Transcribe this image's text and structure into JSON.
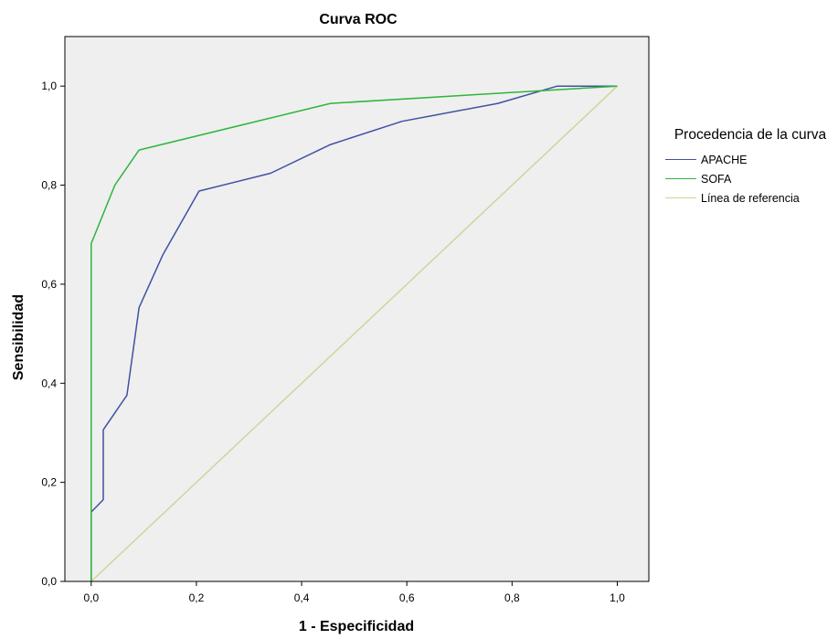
{
  "chart_data": {
    "type": "line",
    "title": "Curva ROC",
    "xlabel": "1 - Especificidad",
    "ylabel": "Sensibilidad",
    "xlim": [
      -0.05,
      1.06
    ],
    "ylim": [
      0.0,
      1.1
    ],
    "xticks": [
      "0,0",
      "0,2",
      "0,4",
      "0,6",
      "0,8",
      "1,0"
    ],
    "yticks": [
      "0,0",
      "0,2",
      "0,4",
      "0,6",
      "0,8",
      "1,0"
    ],
    "grid": false,
    "legend_placement": "right",
    "legend_title": "Procedencia de la curva",
    "series": [
      {
        "name": "APACHE",
        "color": "#3f51a3",
        "x": [
          0.0,
          0.0,
          0.023,
          0.023,
          0.068,
          0.091,
          0.136,
          0.205,
          0.341,
          0.455,
          0.591,
          0.773,
          0.886,
          1.0
        ],
        "y": [
          0.0,
          0.14,
          0.165,
          0.306,
          0.376,
          0.553,
          0.659,
          0.788,
          0.824,
          0.882,
          0.929,
          0.965,
          1.0,
          1.0
        ]
      },
      {
        "name": "SOFA",
        "color": "#2eb53a",
        "x": [
          0.0,
          0.0,
          0.045,
          0.091,
          0.455,
          1.0
        ],
        "y": [
          0.0,
          0.682,
          0.8,
          0.871,
          0.965,
          1.0
        ]
      },
      {
        "name": "Línea de referencia",
        "color": "#d2d39c",
        "x": [
          0.0,
          1.0
        ],
        "y": [
          0.0,
          1.0
        ]
      }
    ]
  },
  "legend": {
    "title": "Procedencia de la curva",
    "items": [
      {
        "label": "APACHE",
        "color": "#3f51a3"
      },
      {
        "label": "SOFA",
        "color": "#2eb53a"
      },
      {
        "label": "Línea de referencia",
        "color": "#d2d39c"
      }
    ]
  },
  "colors": {
    "plot_background": "#efefef",
    "axis": "#000000"
  }
}
